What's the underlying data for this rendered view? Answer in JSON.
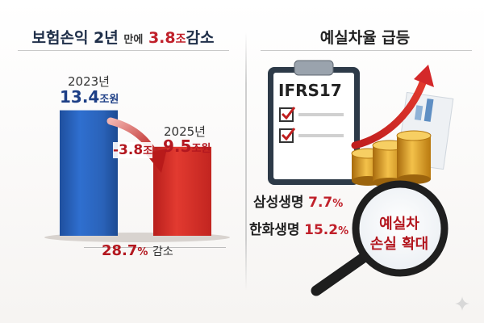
{
  "left_panel": {
    "title": {
      "part1": "보험손익 2년",
      "part2": "만에",
      "part3": "3.8",
      "part4": "조",
      "part5": "감소"
    },
    "change_label": {
      "num": "-3.8",
      "unit": "조"
    },
    "decline": {
      "pct": "28.7",
      "pct_sym": "%",
      "word": "감소"
    }
  },
  "right_panel": {
    "title": "예실차율 급등",
    "clipboard_label": "IFRS17",
    "insurers": [
      {
        "name": "삼성생명",
        "value_num": "7.7",
        "unit": "%"
      },
      {
        "name": "한화생명",
        "value_num": "15.2",
        "unit": "%"
      }
    ],
    "magnifier_text": {
      "line1": "예실차",
      "line2": "손실 확대"
    }
  },
  "chart_data": {
    "type": "bar",
    "categories": [
      "2023년",
      "2025년"
    ],
    "values": [
      13.4,
      9.5
    ],
    "value_labels": [
      "13.4",
      "9.5"
    ],
    "unit_label": "조원",
    "colors": [
      "#2a62b8",
      "#d8302a"
    ]
  }
}
